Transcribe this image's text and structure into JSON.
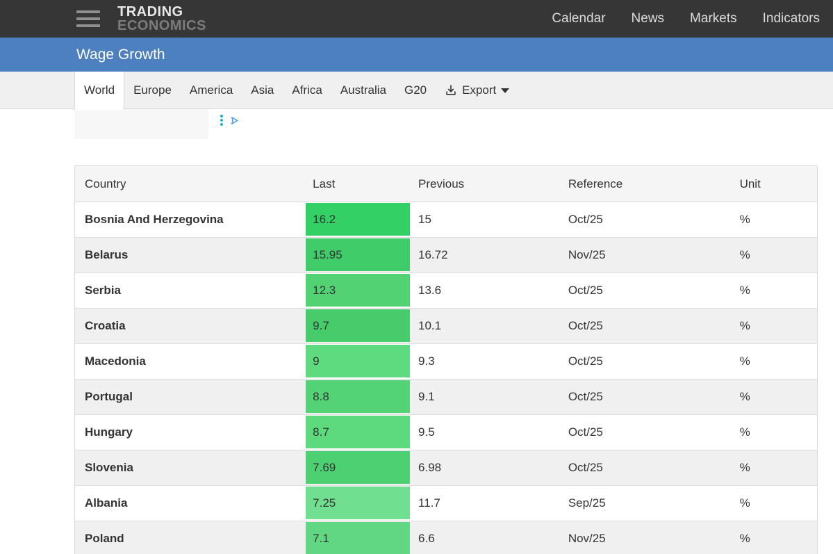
{
  "navbar": {
    "logo_line1": "TRADING",
    "logo_line2": "ECONOMICS",
    "links": [
      "Calendar",
      "News",
      "Markets",
      "Indicators"
    ]
  },
  "page_title": "Wage Growth",
  "tabs": [
    "World",
    "Europe",
    "America",
    "Asia",
    "Africa",
    "Australia",
    "G20"
  ],
  "active_tab": "World",
  "export_label": "Export",
  "icons": {
    "hamburger": "menu-icon",
    "export": "download-icon",
    "caret": "chevron-down-icon",
    "ad_kebab": "ad-options-icon",
    "ad_choices": "adchoices-icon"
  },
  "colors": {
    "navbar_bg": "#363636",
    "title_bar_bg": "#4d80bf",
    "tab_bar_bg": "#f0f0f0",
    "header_bg": "#f5f5f5",
    "stripe_bg": "#f0f0f0",
    "border": "#d9d9d9",
    "ad_kebab": "#17b5d8",
    "ad_choices": "#57a8e0"
  },
  "table": {
    "columns": [
      "Country",
      "Last",
      "Previous",
      "Reference",
      "Unit"
    ],
    "rows": [
      {
        "country": "Bosnia And Herzegovina",
        "last": "16.2",
        "previous": "15",
        "reference": "Oct/25",
        "unit": "%",
        "last_bg": "#33d165"
      },
      {
        "country": "Belarus",
        "last": "15.95",
        "previous": "16.72",
        "reference": "Nov/25",
        "unit": "%",
        "last_bg": "#40cc68"
      },
      {
        "country": "Serbia",
        "last": "12.3",
        "previous": "13.6",
        "reference": "Oct/25",
        "unit": "%",
        "last_bg": "#53d274"
      },
      {
        "country": "Croatia",
        "last": "9.7",
        "previous": "10.1",
        "reference": "Oct/25",
        "unit": "%",
        "last_bg": "#47cc6c"
      },
      {
        "country": "Macedonia",
        "last": "9",
        "previous": "9.3",
        "reference": "Oct/25",
        "unit": "%",
        "last_bg": "#5edb7f"
      },
      {
        "country": "Portugal",
        "last": "8.8",
        "previous": "9.1",
        "reference": "Oct/25",
        "unit": "%",
        "last_bg": "#53d376"
      },
      {
        "country": "Hungary",
        "last": "8.7",
        "previous": "9.5",
        "reference": "Oct/25",
        "unit": "%",
        "last_bg": "#5cda7d"
      },
      {
        "country": "Slovenia",
        "last": "7.69",
        "previous": "6.98",
        "reference": "Oct/25",
        "unit": "%",
        "last_bg": "#4cd071"
      },
      {
        "country": "Albania",
        "last": "7.25",
        "previous": "11.7",
        "reference": "Sep/25",
        "unit": "%",
        "last_bg": "#70df90"
      },
      {
        "country": "Poland",
        "last": "7.1",
        "previous": "6.6",
        "reference": "Nov/25",
        "unit": "%",
        "last_bg": "#61d782"
      }
    ]
  }
}
